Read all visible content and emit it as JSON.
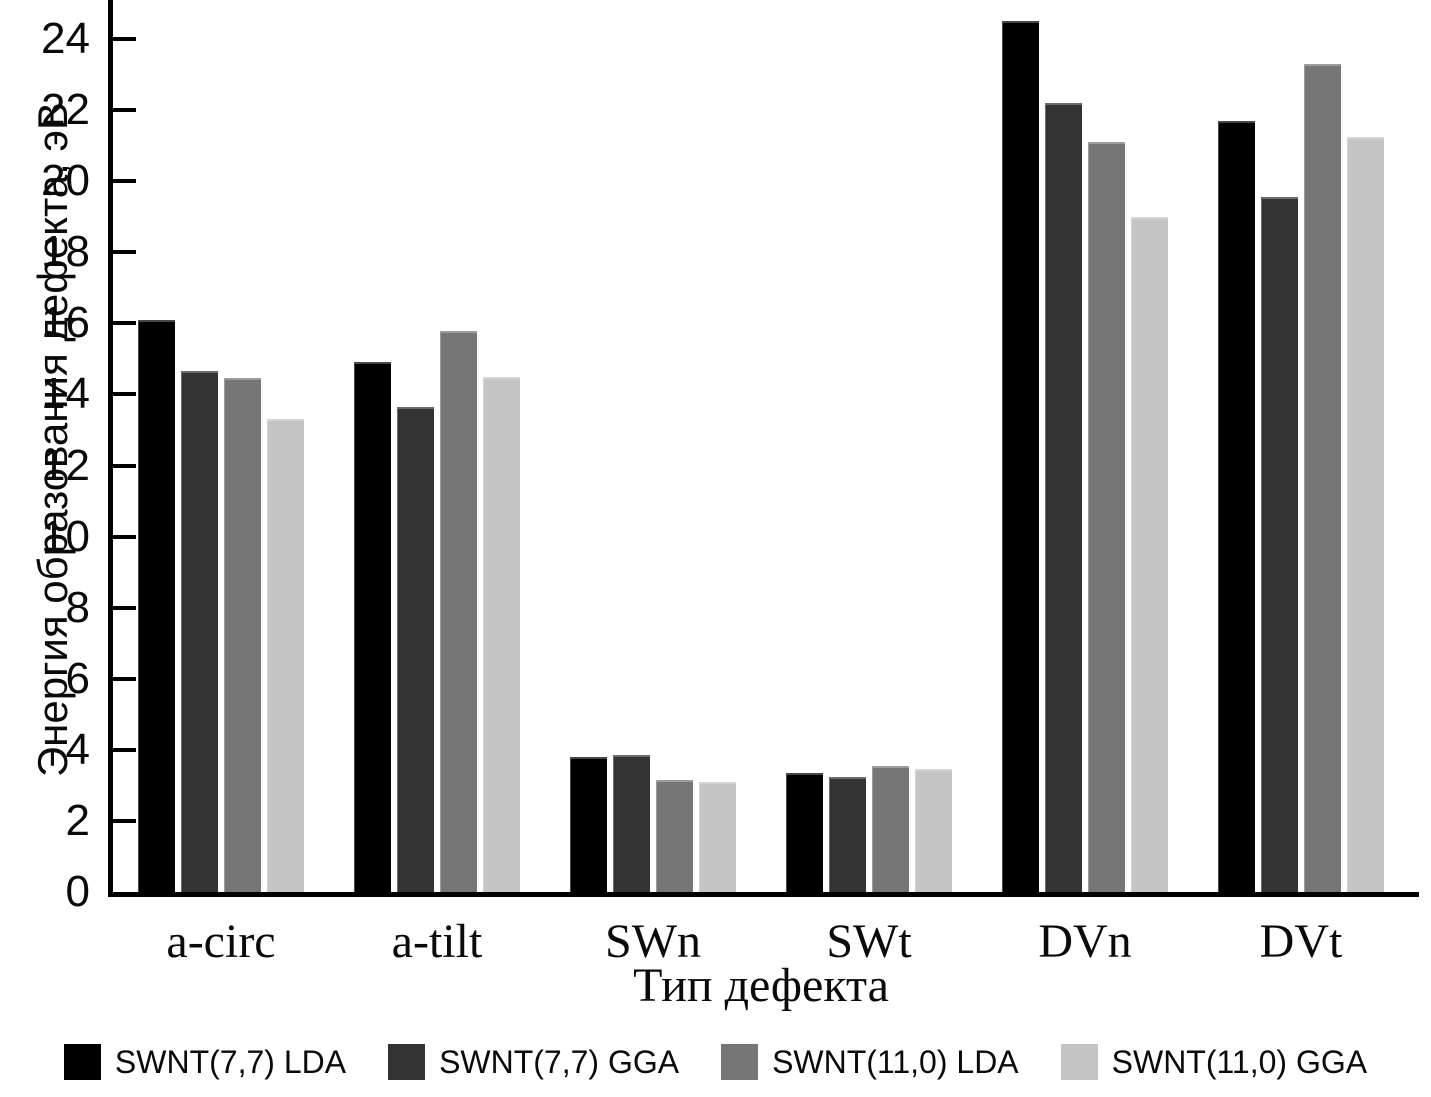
{
  "chart_data": {
    "type": "bar",
    "title": "",
    "xlabel": "Тип дефекта",
    "ylabel": "Энергия образования дефекта, эВ",
    "categories": [
      "a-circ",
      "a-tilt",
      "SWn",
      "SWt",
      "DVn",
      "DVt"
    ],
    "series": [
      {
        "name": "SWNT(7,7) LDA",
        "color": "#000000",
        "values": [
          16.1,
          14.9,
          3.8,
          3.35,
          24.5,
          21.7
        ]
      },
      {
        "name": "SWNT(7,7) GGA",
        "color": "#333333",
        "values": [
          14.65,
          13.65,
          3.85,
          3.25,
          22.2,
          19.55
        ]
      },
      {
        "name": "SWNT(11,0) LDA",
        "color": "#767676",
        "values": [
          14.45,
          15.8,
          3.15,
          3.55,
          21.1,
          23.3
        ]
      },
      {
        "name": "SWNT(11,0) GGA",
        "color": "#c4c4c4",
        "values": [
          13.3,
          14.5,
          3.1,
          3.45,
          19.0,
          21.25
        ]
      }
    ],
    "yticks": [
      0,
      2,
      4,
      6,
      8,
      10,
      12,
      14,
      16,
      18,
      20,
      22,
      24
    ],
    "ylim": [
      0,
      25.1
    ],
    "grid": false,
    "legend_position": "bottom",
    "axis_color": "#000000",
    "background_color": "#ffffff"
  }
}
